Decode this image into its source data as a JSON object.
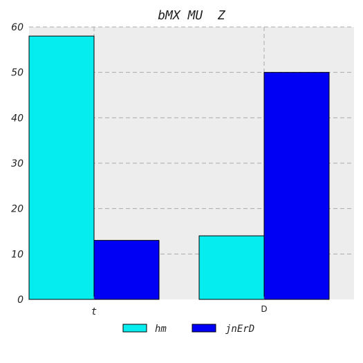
{
  "chart_data": {
    "type": "bar",
    "title": "bMX MU  Z",
    "xlabel": "",
    "ylabel": "",
    "categories": [
      "t",
      "D"
    ],
    "series": [
      {
        "name": "hm",
        "values": [
          58,
          14
        ],
        "color": "#06EDEF"
      },
      {
        "name": "jnErD",
        "values": [
          13,
          50
        ],
        "color": "#0000F5"
      }
    ],
    "ylim": [
      0,
      60
    ],
    "yticks": [
      0,
      10,
      20,
      30,
      40,
      50,
      60
    ],
    "grid": true,
    "legend_position": "bottom-center",
    "background_color": "#EDEDED",
    "grid_color": "#AAAAAA"
  }
}
